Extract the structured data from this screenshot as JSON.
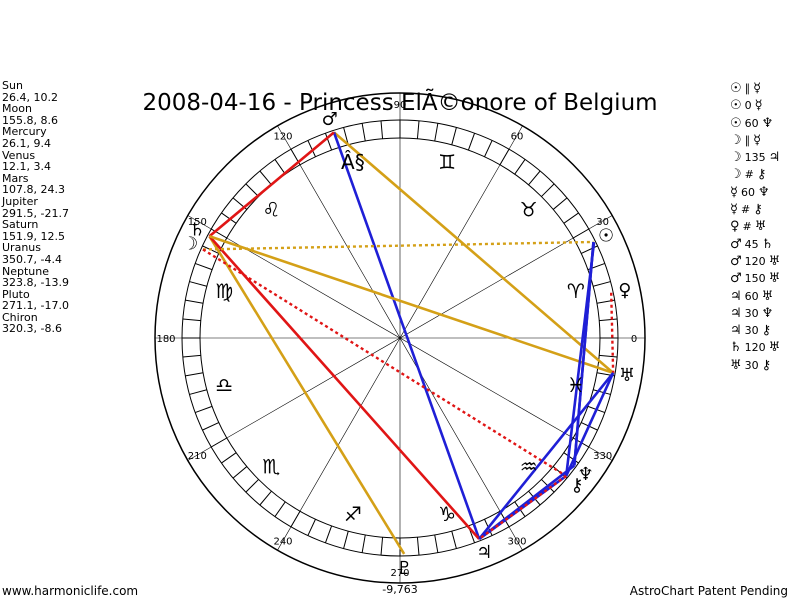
{
  "title": "2008-04-16 - Princess ElÃ©onore of Belgium",
  "bottom_value": "-9,763",
  "planets": [
    {
      "name": "Sun",
      "coords": "26.4, 10.2"
    },
    {
      "name": "Moon",
      "coords": "155.8, 8.6"
    },
    {
      "name": "Mercury",
      "coords": "26.1, 9.4"
    },
    {
      "name": "Venus",
      "coords": "12.1, 3.4"
    },
    {
      "name": "Mars",
      "coords": "107.8, 24.3"
    },
    {
      "name": "Jupiter",
      "coords": "291.5, -21.7"
    },
    {
      "name": "Saturn",
      "coords": "151.9, 12.5"
    },
    {
      "name": "Uranus",
      "coords": "350.7, -4.4"
    },
    {
      "name": "Neptune",
      "coords": "323.8, -13.9"
    },
    {
      "name": "Pluto",
      "coords": "271.1, -17.0"
    },
    {
      "name": "Chiron",
      "coords": "320.3, -8.6"
    }
  ],
  "aspects": [
    {
      "p1": "☉",
      "deg": "∥",
      "p2": "☿"
    },
    {
      "p1": "☉",
      "deg": "0",
      "p2": "☿"
    },
    {
      "p1": "☉",
      "deg": "60",
      "p2": "♆"
    },
    {
      "p1": "☽",
      "deg": "∥",
      "p2": "☿"
    },
    {
      "p1": "☽",
      "deg": "135",
      "p2": "♃"
    },
    {
      "p1": "☽",
      "deg": "#",
      "p2": "⚷"
    },
    {
      "p1": "☿",
      "deg": "60",
      "p2": "♆"
    },
    {
      "p1": "☿",
      "deg": "#",
      "p2": "⚷"
    },
    {
      "p1": "♀",
      "deg": "#",
      "p2": "♅"
    },
    {
      "p1": "♂",
      "deg": "45",
      "p2": "♄"
    },
    {
      "p1": "♂",
      "deg": "120",
      "p2": "♅"
    },
    {
      "p1": "♂",
      "deg": "150",
      "p2": "♅"
    },
    {
      "p1": "♃",
      "deg": "60",
      "p2": "♅"
    },
    {
      "p1": "♃",
      "deg": "30",
      "p2": "♆"
    },
    {
      "p1": "♃",
      "deg": "30",
      "p2": "⚷"
    },
    {
      "p1": "♄",
      "deg": "120",
      "p2": "♅"
    },
    {
      "p1": "♅",
      "deg": "30",
      "p2": "⚷"
    }
  ],
  "degree_labels": [
    {
      "deg": 0,
      "text": "0"
    },
    {
      "deg": 30,
      "text": "30"
    },
    {
      "deg": 60,
      "text": "60"
    },
    {
      "deg": 90,
      "text": "90"
    },
    {
      "deg": 120,
      "text": "120"
    },
    {
      "deg": 150,
      "text": "150"
    },
    {
      "deg": 180,
      "text": "180"
    },
    {
      "deg": 210,
      "text": "210"
    },
    {
      "deg": 240,
      "text": "240"
    },
    {
      "deg": 270,
      "text": "270"
    },
    {
      "deg": 300,
      "text": "300"
    },
    {
      "deg": 330,
      "text": "330"
    }
  ],
  "zodiac_signs": [
    {
      "glyph": "♈",
      "deg": 15
    },
    {
      "glyph": "♉",
      "deg": 45
    },
    {
      "glyph": "♊",
      "deg": 75
    },
    {
      "glyph": "Â§",
      "deg": 105
    },
    {
      "glyph": "♌",
      "deg": 135
    },
    {
      "glyph": "♍",
      "deg": 165
    },
    {
      "glyph": "♎",
      "deg": 195
    },
    {
      "glyph": "♏",
      "deg": 225
    },
    {
      "glyph": "♐",
      "deg": 255
    },
    {
      "glyph": "♑",
      "deg": 285
    },
    {
      "glyph": "♒",
      "deg": 315
    },
    {
      "glyph": "♓",
      "deg": 345
    }
  ],
  "planet_glyphs": [
    {
      "glyph": "☉",
      "deg": 26.4
    },
    {
      "glyph": "☽",
      "deg": 155.8
    },
    {
      "glyph": "♀",
      "deg": 12.1
    },
    {
      "glyph": "♂",
      "deg": 107.8
    },
    {
      "glyph": "♃",
      "deg": 291.5
    },
    {
      "glyph": "♄",
      "deg": 151.9
    },
    {
      "glyph": "♅",
      "deg": 350.7
    },
    {
      "glyph": "♆",
      "deg": 323.8
    },
    {
      "glyph": "♇",
      "deg": 271.1
    },
    {
      "glyph": "⚷",
      "deg": 320.3
    }
  ],
  "aspect_lines": [
    {
      "a": 107.8,
      "b": 350.7,
      "color": "#d4a017",
      "style": "solid"
    },
    {
      "a": 107.8,
      "b": 291.5,
      "color": "#1f1fd6",
      "style": "solid"
    },
    {
      "a": 107.8,
      "b": 151.9,
      "color": "#e01515",
      "style": "solid"
    },
    {
      "a": 151.9,
      "b": 271.1,
      "color": "#d4a017",
      "style": "solid"
    },
    {
      "a": 151.9,
      "b": 291.5,
      "color": "#e01515",
      "style": "solid"
    },
    {
      "a": 151.9,
      "b": 350.7,
      "color": "#d4a017",
      "style": "solid"
    },
    {
      "a": 155.8,
      "b": 26.4,
      "color": "#d4a017",
      "style": "dotted"
    },
    {
      "a": 155.8,
      "b": 320.3,
      "color": "#e01515",
      "style": "dotted"
    },
    {
      "a": 26.4,
      "b": 323.8,
      "color": "#1f1fd6",
      "style": "solid"
    },
    {
      "a": 26.1,
      "b": 320.3,
      "color": "#1f1fd6",
      "style": "solid"
    },
    {
      "a": 12.1,
      "b": 350.7,
      "color": "#e01515",
      "style": "dotted"
    },
    {
      "a": 291.5,
      "b": 350.7,
      "color": "#1f1fd6",
      "style": "solid"
    },
    {
      "a": 291.5,
      "b": 323.8,
      "color": "#1f1fd6",
      "style": "solid"
    },
    {
      "a": 291.5,
      "b": 320.3,
      "color": "#1f1fd6",
      "style": "solid"
    },
    {
      "a": 350.7,
      "b": 320.3,
      "color": "#1f1fd6",
      "style": "solid"
    },
    {
      "a": 323.8,
      "b": 26.4,
      "color": "#1f1fd6",
      "style": "solid"
    },
    {
      "a": 320.3,
      "b": 291.5,
      "color": "#e01515",
      "style": "dotted"
    }
  ],
  "footer": {
    "left": "www.harmoniclife.com",
    "right": "AstroChart Patent Pending"
  }
}
